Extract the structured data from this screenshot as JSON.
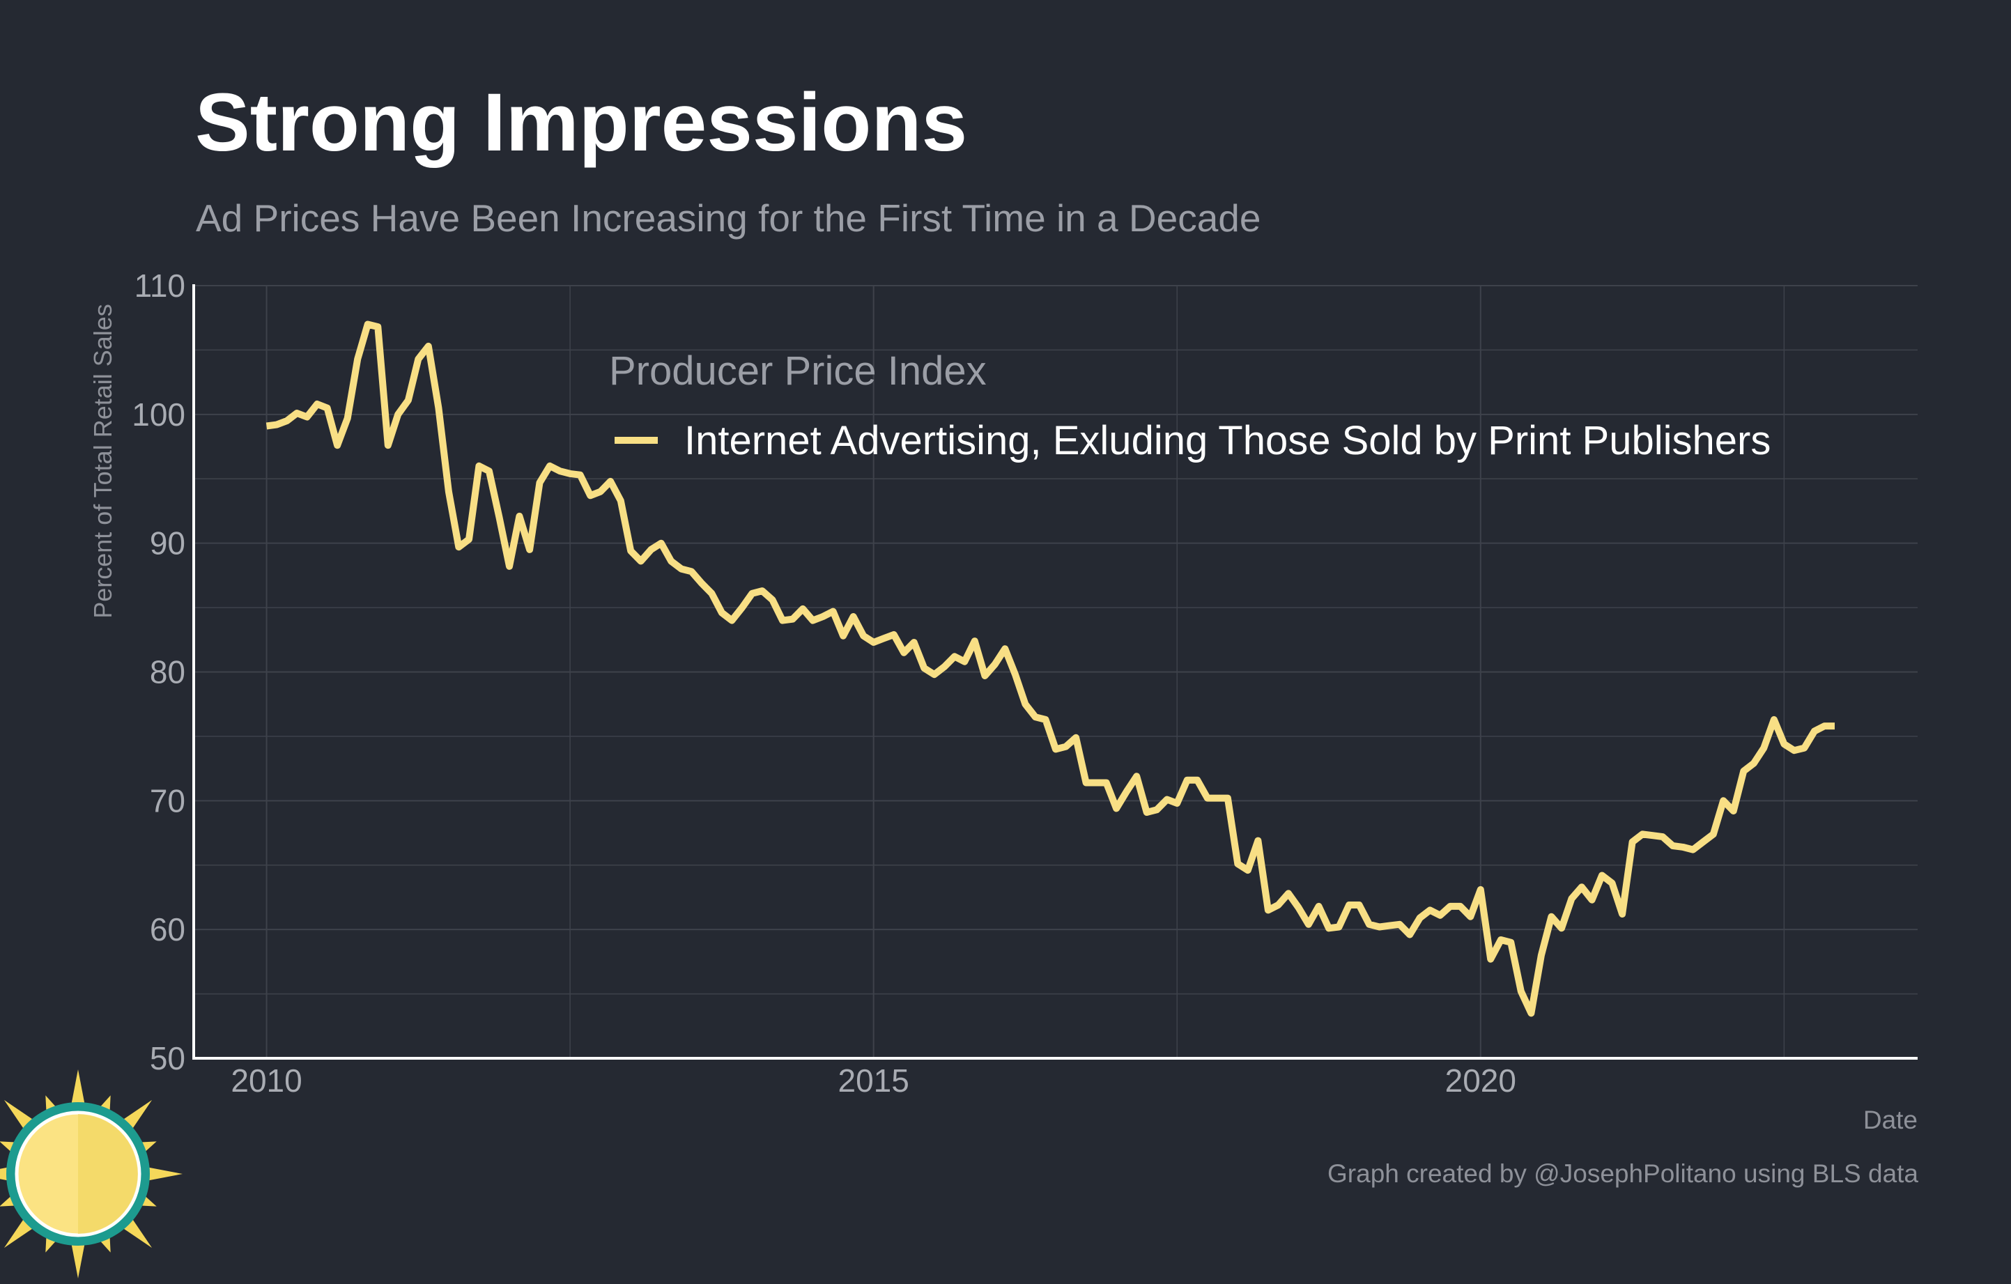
{
  "header": {
    "title": "Strong Impressions",
    "subtitle": "Ad Prices Have Been Increasing for the First Time in a Decade"
  },
  "footer": {
    "credit": "Graph created by @JosephPolitano using BLS data"
  },
  "colors": {
    "background": "#252932",
    "line": "#f8df85",
    "grid": "#3e424b",
    "axis": "#ffffff",
    "tick_text": "#a9acb3"
  },
  "chart_data": {
    "type": "line",
    "xlabel": "Date",
    "ylabel": "Percent of Total Retail Sales",
    "ylim": [
      50,
      110
    ],
    "xlim": [
      2009.4,
      2023.6
    ],
    "yticks": [
      50,
      60,
      70,
      80,
      90,
      100,
      110
    ],
    "xticks": [
      2010,
      2015,
      2020
    ],
    "grid": true,
    "legend": {
      "title": "Producer Price Index",
      "position": "top-center"
    },
    "series": [
      {
        "name": "Internet Advertising, Exluding Those Sold by Print Publishers",
        "color": "#f8df85",
        "x": [
          2010.0,
          2010.083,
          2010.167,
          2010.25,
          2010.333,
          2010.417,
          2010.5,
          2010.583,
          2010.667,
          2010.75,
          2010.833,
          2010.917,
          2011.0,
          2011.083,
          2011.167,
          2011.25,
          2011.333,
          2011.417,
          2011.5,
          2011.583,
          2011.667,
          2011.75,
          2011.833,
          2011.917,
          2012.0,
          2012.083,
          2012.167,
          2012.25,
          2012.333,
          2012.417,
          2012.5,
          2012.583,
          2012.667,
          2012.75,
          2012.833,
          2012.917,
          2013.0,
          2013.083,
          2013.167,
          2013.25,
          2013.333,
          2013.417,
          2013.5,
          2013.583,
          2013.667,
          2013.75,
          2013.833,
          2013.917,
          2014.0,
          2014.083,
          2014.167,
          2014.25,
          2014.333,
          2014.417,
          2014.5,
          2014.583,
          2014.667,
          2014.75,
          2014.833,
          2014.917,
          2015.0,
          2015.083,
          2015.167,
          2015.25,
          2015.333,
          2015.417,
          2015.5,
          2015.583,
          2015.667,
          2015.75,
          2015.833,
          2015.917,
          2016.0,
          2016.083,
          2016.167,
          2016.25,
          2016.333,
          2016.417,
          2016.5,
          2016.583,
          2016.667,
          2016.75,
          2016.833,
          2016.917,
          2017.0,
          2017.083,
          2017.167,
          2017.25,
          2017.333,
          2017.417,
          2017.5,
          2017.583,
          2017.667,
          2017.75,
          2017.833,
          2017.917,
          2018.0,
          2018.083,
          2018.167,
          2018.25,
          2018.333,
          2018.417,
          2018.5,
          2018.583,
          2018.667,
          2018.75,
          2018.833,
          2018.917,
          2019.0,
          2019.083,
          2019.167,
          2019.25,
          2019.333,
          2019.417,
          2019.5,
          2019.583,
          2019.667,
          2019.75,
          2019.833,
          2019.917,
          2020.0,
          2020.083,
          2020.167,
          2020.25,
          2020.333,
          2020.417,
          2020.5,
          2020.583,
          2020.667,
          2020.75,
          2020.833,
          2020.917,
          2021.0,
          2021.083,
          2021.167,
          2021.25,
          2021.333,
          2021.417,
          2021.5,
          2021.583,
          2021.667,
          2021.75,
          2021.833,
          2021.917,
          2022.0,
          2022.083,
          2022.167,
          2022.25,
          2022.333,
          2022.417,
          2022.5,
          2022.583,
          2022.667,
          2022.75,
          2022.833,
          2022.917
        ],
        "y": [
          99.1,
          99.2,
          99.5,
          100.1,
          99.8,
          100.8,
          100.5,
          97.6,
          99.7,
          104.3,
          107.0,
          106.8,
          97.6,
          100.0,
          101.1,
          104.3,
          105.3,
          100.5,
          94.0,
          89.7,
          90.3,
          96.0,
          95.6,
          92.0,
          88.2,
          92.1,
          89.5,
          94.7,
          96.0,
          95.6,
          95.4,
          95.3,
          93.7,
          94.0,
          94.8,
          93.3,
          89.4,
          88.6,
          89.5,
          90.0,
          88.6,
          88.0,
          87.8,
          86.9,
          86.1,
          84.6,
          84.0,
          85.0,
          86.1,
          86.3,
          85.6,
          84.0,
          84.1,
          84.9,
          84.0,
          84.3,
          84.7,
          82.8,
          84.3,
          82.8,
          82.3,
          82.6,
          82.9,
          81.5,
          82.3,
          80.3,
          79.8,
          80.4,
          81.2,
          80.8,
          82.4,
          79.7,
          80.6,
          81.8,
          79.8,
          77.5,
          76.5,
          76.3,
          74.0,
          74.2,
          74.9,
          71.4,
          71.4,
          71.4,
          69.4,
          70.7,
          71.9,
          69.1,
          69.3,
          70.1,
          69.8,
          71.6,
          71.6,
          70.2,
          70.2,
          70.2,
          65.1,
          64.6,
          66.9,
          61.5,
          61.9,
          62.8,
          61.7,
          60.4,
          61.8,
          60.1,
          60.2,
          61.9,
          61.9,
          60.4,
          60.2,
          60.3,
          60.4,
          59.6,
          60.9,
          61.5,
          61.1,
          61.8,
          61.8,
          61.0,
          63.1,
          57.7,
          59.2,
          59.0,
          55.2,
          53.5,
          58.0,
          61.0,
          60.1,
          62.4,
          63.3,
          62.3,
          64.2,
          63.6,
          61.2,
          66.8,
          67.4,
          67.3,
          67.2,
          66.5,
          66.4,
          66.2,
          66.8,
          67.4,
          70.0,
          69.2,
          72.3,
          72.9,
          74.1,
          76.3,
          74.4,
          73.9,
          74.1,
          75.4,
          75.8,
          75.8
        ]
      }
    ]
  }
}
